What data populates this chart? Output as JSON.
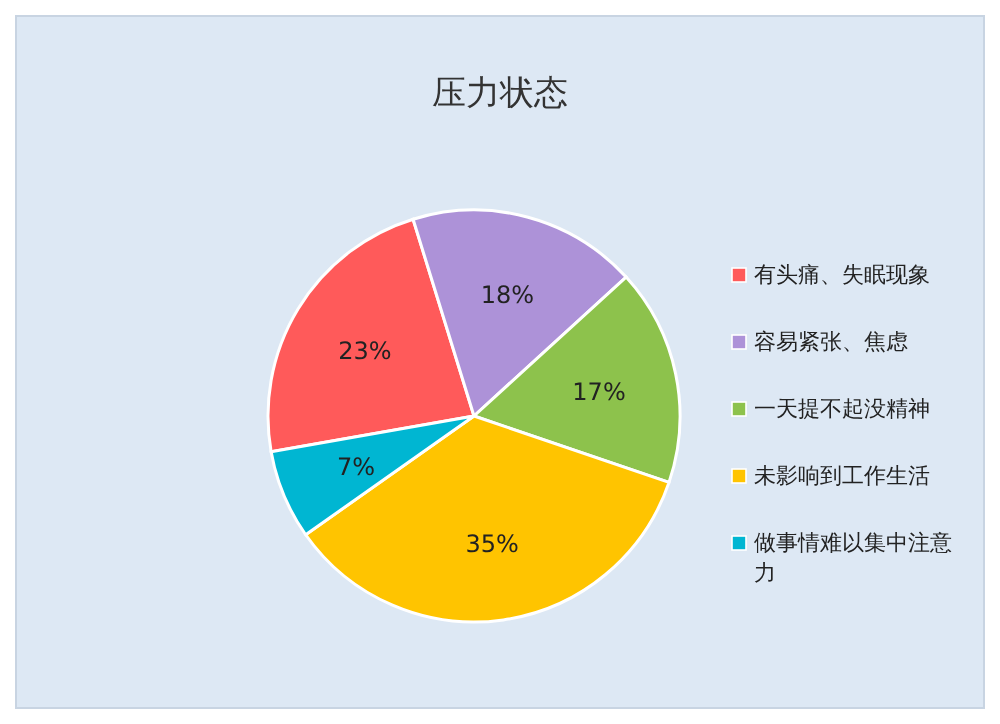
{
  "chart_data": {
    "type": "pie",
    "title": "压力状态",
    "categories": [
      "有头痛、失眠现象",
      "容易紧张、焦虑",
      "一天提不起没精神",
      "未影响到工作生活",
      "做事情难以集中注意力"
    ],
    "values": [
      23,
      18,
      17,
      35,
      7
    ],
    "colors": [
      "#ff5a5a",
      "#ad92d8",
      "#8dc24c",
      "#ffc400",
      "#00b6d2"
    ],
    "value_labels": [
      "23%",
      "18%",
      "17%",
      "35%",
      "7%"
    ],
    "legend": "right"
  }
}
